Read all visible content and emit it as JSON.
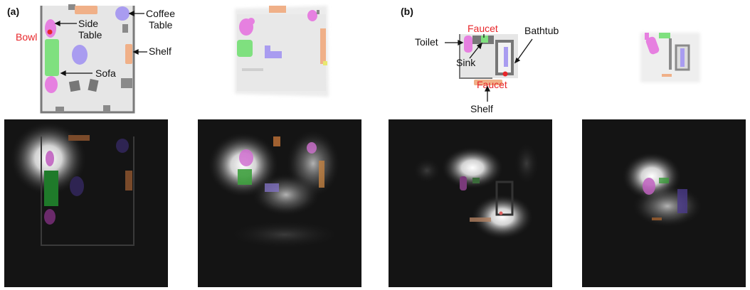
{
  "panel_labels": {
    "a": "(a)",
    "b": "(b)"
  },
  "panel_a": {
    "labels": {
      "bowl": "Bowl",
      "side_table_1": "Side",
      "side_table_2": "Table",
      "coffee_table_1": "Coffee",
      "coffee_table_2": "Table",
      "shelf": "Shelf",
      "sofa": "Sofa"
    }
  },
  "panel_b": {
    "labels": {
      "faucet_top": "Faucet",
      "toilet": "Toilet",
      "bathtub": "Bathtub",
      "sink": "Sink",
      "faucet_bottom": "Faucet",
      "shelf": "Shelf"
    }
  },
  "colors": {
    "red_label": "#e8262a",
    "pink": "#e680e0",
    "green": "#7fe07f",
    "purple": "#a99cf0",
    "orange": "#f0b088",
    "floor": "#e6e6e6",
    "wall": "#7a7a7a",
    "heat_bg": "#141414"
  }
}
